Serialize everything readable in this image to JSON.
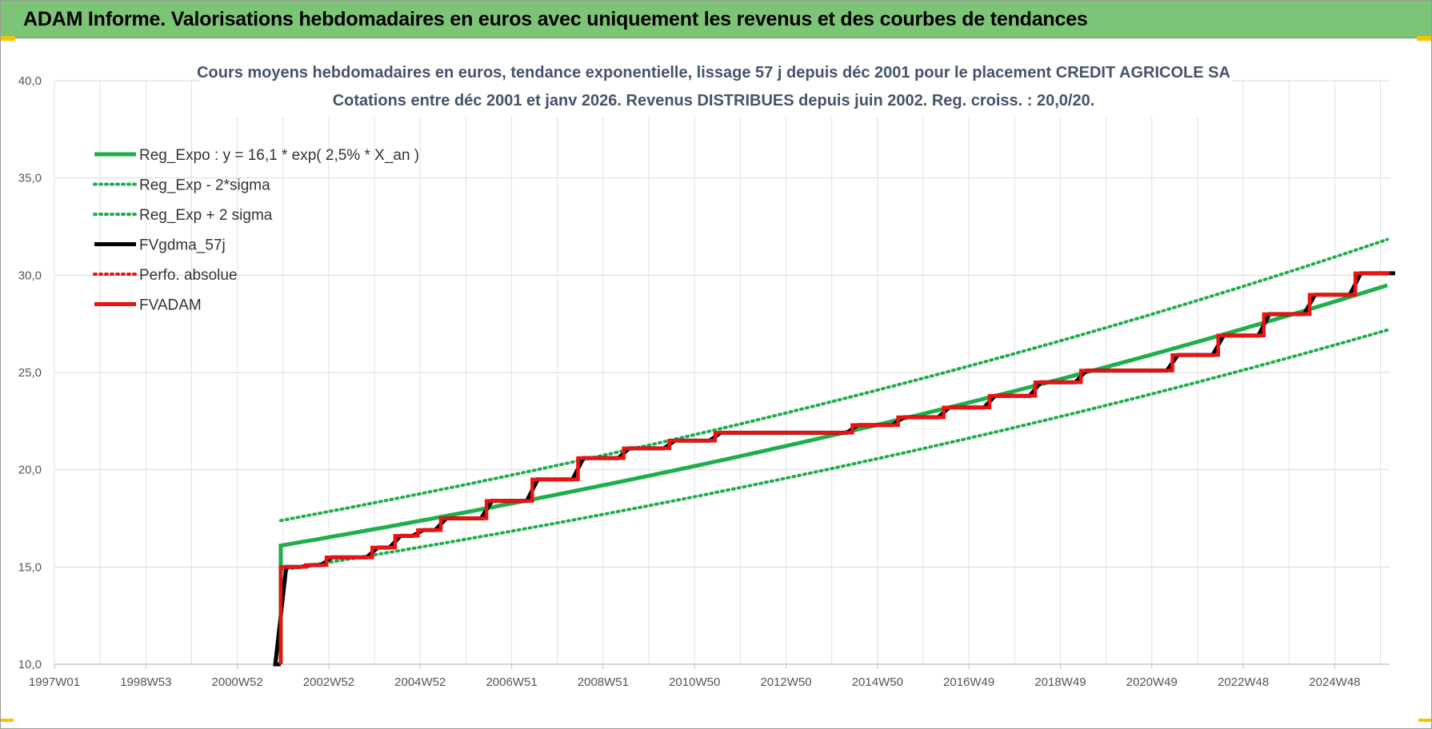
{
  "banner": {
    "title": "ADAM Informe. Valorisations hebdomadaires en euros avec uniquement les revenus et des courbes de tendances"
  },
  "colors": {
    "banner": "#7cc576",
    "green": "#1fae4b",
    "red": "#ee1111",
    "black": "#000000",
    "accent": "#f5c400"
  },
  "chart_data": {
    "type": "line",
    "title_line1": "Cours moyens hebdomadaires en euros, tendance exponentielle, lissage 57 j depuis déc 2001 pour le placement CREDIT AGRICOLE SA",
    "title_line2": "Cotations entre déc 2001 et janv 2026. Revenus DISTRIBUES depuis juin 2002. Reg. croiss. : 20,0/20.",
    "ylim": [
      10,
      40
    ],
    "y_ticks": [
      "10,0",
      "15,0",
      "20,0",
      "25,0",
      "30,0",
      "35,0",
      "40,0"
    ],
    "x_range": [
      1997.0,
      2026.2
    ],
    "x_ticks": [
      {
        "label": "1997W01",
        "year": 1997.0
      },
      {
        "label": "1998W53",
        "year": 1999.0
      },
      {
        "label": "2000W52",
        "year": 2001.0
      },
      {
        "label": "2002W52",
        "year": 2003.0
      },
      {
        "label": "2004W52",
        "year": 2005.0
      },
      {
        "label": "2006W51",
        "year": 2007.0
      },
      {
        "label": "2008W51",
        "year": 2009.0
      },
      {
        "label": "2010W50",
        "year": 2011.0
      },
      {
        "label": "2012W50",
        "year": 2013.0
      },
      {
        "label": "2014W50",
        "year": 2015.0
      },
      {
        "label": "2016W49",
        "year": 2017.0
      },
      {
        "label": "2018W49",
        "year": 2019.0
      },
      {
        "label": "2020W49",
        "year": 2021.0
      },
      {
        "label": "2022W48",
        "year": 2023.0
      },
      {
        "label": "2024W48",
        "year": 2025.0
      }
    ],
    "legend": [
      {
        "label": "Reg_Expo : y = 16,1 * exp( 2,5% *  X_an )",
        "color": "#1fae4b",
        "style": "solid"
      },
      {
        "label": "Reg_Exp - 2*sigma",
        "color": "#1fae4b",
        "style": "dotted"
      },
      {
        "label": "Reg_Exp + 2 sigma",
        "color": "#1fae4b",
        "style": "dotted"
      },
      {
        "label": "FVgdma_57j",
        "color": "#000000",
        "style": "solid"
      },
      {
        "label": "Perfo. absolue",
        "color": "#ee1111",
        "style": "dotted"
      },
      {
        "label": "FVADAM",
        "color": "#ee1111",
        "style": "solid"
      }
    ],
    "legend_position": "top-left",
    "grid": true,
    "regression": {
      "a": 16.1,
      "rate": 0.025,
      "start_year": 2001.95,
      "end_year": 2026.2,
      "sigma_lower_factor": 0.922,
      "sigma_upper_factor": 1.08
    },
    "fvadam_steps": [
      {
        "year": 2001.95,
        "value": 10.0
      },
      {
        "year": 2001.95,
        "value": 15.0
      },
      {
        "year": 2002.5,
        "value": 15.1
      },
      {
        "year": 2002.95,
        "value": 15.5
      },
      {
        "year": 2003.95,
        "value": 16.0
      },
      {
        "year": 2004.45,
        "value": 16.6
      },
      {
        "year": 2004.95,
        "value": 16.9
      },
      {
        "year": 2005.45,
        "value": 17.5
      },
      {
        "year": 2006.45,
        "value": 18.4
      },
      {
        "year": 2007.45,
        "value": 19.5
      },
      {
        "year": 2008.45,
        "value": 20.6
      },
      {
        "year": 2009.45,
        "value": 21.1
      },
      {
        "year": 2010.45,
        "value": 21.5
      },
      {
        "year": 2011.45,
        "value": 21.9
      },
      {
        "year": 2014.45,
        "value": 22.3
      },
      {
        "year": 2015.45,
        "value": 22.7
      },
      {
        "year": 2016.45,
        "value": 23.2
      },
      {
        "year": 2017.45,
        "value": 23.8
      },
      {
        "year": 2018.45,
        "value": 24.5
      },
      {
        "year": 2019.45,
        "value": 25.1
      },
      {
        "year": 2021.45,
        "value": 25.9
      },
      {
        "year": 2022.45,
        "value": 26.9
      },
      {
        "year": 2023.45,
        "value": 28.0
      },
      {
        "year": 2024.45,
        "value": 29.0
      },
      {
        "year": 2025.45,
        "value": 30.1
      },
      {
        "year": 2026.2,
        "value": 30.1
      }
    ]
  }
}
